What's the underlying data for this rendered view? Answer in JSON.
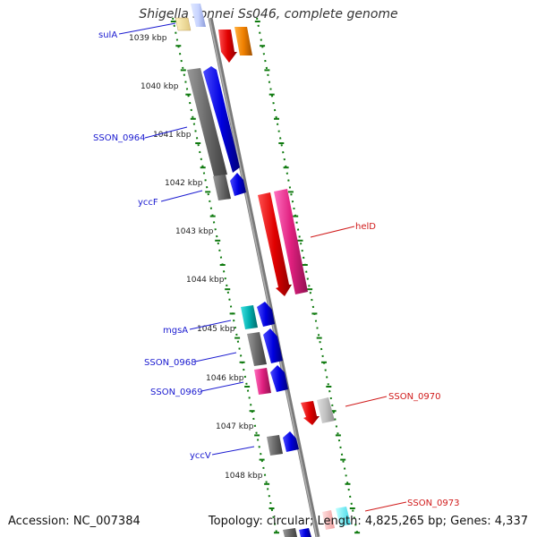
{
  "title": "Shigella sonnei Ss046, complete genome",
  "accession": "Accession: NC_007384",
  "topology": "Topology: circular; Length: 4,825,265 bp; Genes: 4,337",
  "colors": {
    "backbone": "#8c8c8c",
    "ruler": "#0f7a0f",
    "left_label": "#1a1ad0",
    "right_label": "#d01a1a"
  },
  "ruler_labels": [
    "1039 kbp",
    "1040 kbp",
    "1041 kbp",
    "1042 kbp",
    "1043 kbp",
    "1044 kbp",
    "1045 kbp",
    "1046 kbp",
    "1047 kbp",
    "1048 kbp"
  ],
  "gene_labels_left": [
    "sulA",
    "SSON_0964",
    "yccF",
    "mgsA",
    "SSON_0968",
    "SSON_0969",
    "yccV"
  ],
  "gene_labels_right": [
    "helD",
    "SSON_0970",
    "SSON_0973"
  ]
}
